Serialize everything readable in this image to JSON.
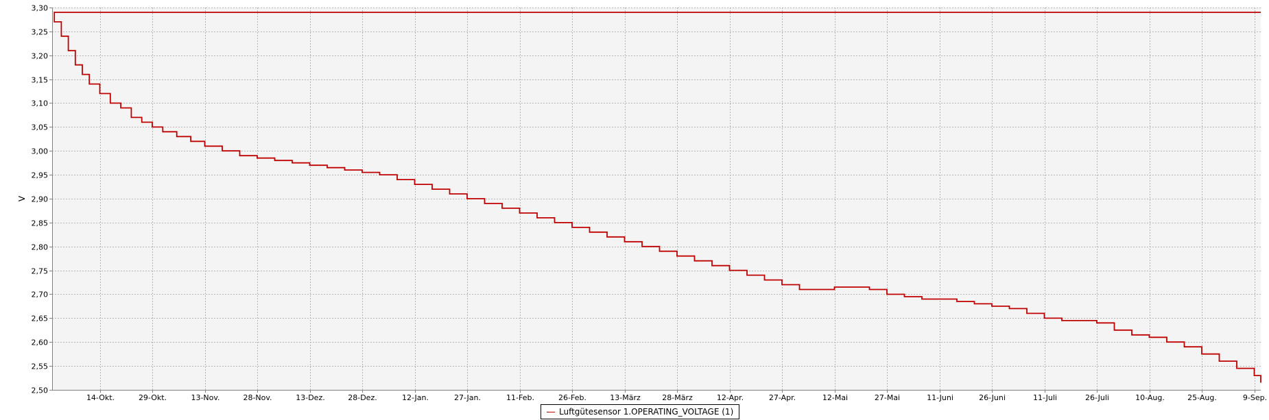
{
  "chart_data": {
    "type": "line",
    "ylabel": "V",
    "xlabel": "",
    "ylim": [
      2.5,
      3.3
    ],
    "y_ticks": [
      "2,50",
      "2,55",
      "2,60",
      "2,65",
      "2,70",
      "2,75",
      "2,80",
      "2,85",
      "2,90",
      "2,95",
      "3,00",
      "3,05",
      "3,10",
      "3,15",
      "3,20",
      "3,25",
      "3,30"
    ],
    "x_ticks": [
      "14-Okt.",
      "29-Okt.",
      "13-Nov.",
      "28-Nov.",
      "13-Dez.",
      "28-Dez.",
      "12-Jan.",
      "27-Jan.",
      "11-Feb.",
      "26-Feb.",
      "13-März",
      "28-März",
      "12-Apr.",
      "27-Apr.",
      "12-Mai",
      "27-Mai",
      "11-Juni",
      "26-Juni",
      "11-Juli",
      "26-Juli",
      "10-Aug.",
      "25-Aug.",
      "9-Sep."
    ],
    "grid": true,
    "legend_position": "bottom-center",
    "colors": {
      "series": "#c00000",
      "plot_background": "#f4f4f4",
      "grid": "#b4b4b4"
    },
    "series": [
      {
        "name": "Luftgütesensor 1.OPERATING_VOLTAGE (1)",
        "x": [
          "30-Sep.",
          "1-Okt.",
          "3-Okt.",
          "5-Okt.",
          "7-Okt.",
          "9-Okt.",
          "11-Okt.",
          "14-Okt.",
          "17-Okt.",
          "20-Okt.",
          "23-Okt.",
          "26-Okt.",
          "29-Okt.",
          "1-Nov.",
          "5-Nov.",
          "9-Nov.",
          "13-Nov.",
          "18-Nov.",
          "23-Nov.",
          "28-Nov.",
          "3-Dez.",
          "8-Dez.",
          "13-Dez.",
          "18-Dez.",
          "23-Dez.",
          "28-Dez.",
          "2-Jan.",
          "7-Jan.",
          "12-Jan.",
          "17-Jan.",
          "22-Jan.",
          "27-Jan.",
          "1-Feb.",
          "6-Feb.",
          "11-Feb.",
          "16-Feb.",
          "21-Feb.",
          "26-Feb.",
          "3-März",
          "8-März",
          "13-März",
          "18-März",
          "23-März",
          "28-März",
          "2-Apr.",
          "7-Apr.",
          "12-Apr.",
          "17-Apr.",
          "22-Apr.",
          "27-Apr.",
          "2-Mai",
          "7-Mai",
          "12-Mai",
          "17-Mai",
          "22-Mai",
          "27-Mai",
          "1-Juni",
          "6-Juni",
          "11-Juni",
          "16-Juni",
          "21-Juni",
          "26-Juni",
          "1-Juli",
          "6-Juli",
          "11-Juli",
          "16-Juli",
          "21-Juli",
          "26-Juli",
          "31-Juli",
          "5-Aug.",
          "10-Aug.",
          "15-Aug.",
          "20-Aug.",
          "25-Aug.",
          "30-Aug.",
          "4-Sep.",
          "9-Sep.",
          "11-Sep."
        ],
        "values": [
          3.29,
          3.27,
          3.24,
          3.21,
          3.18,
          3.16,
          3.14,
          3.12,
          3.1,
          3.09,
          3.07,
          3.06,
          3.05,
          3.04,
          3.03,
          3.02,
          3.01,
          3.0,
          2.99,
          2.985,
          2.98,
          2.975,
          2.97,
          2.965,
          2.96,
          2.955,
          2.95,
          2.94,
          2.93,
          2.92,
          2.91,
          2.9,
          2.89,
          2.88,
          2.87,
          2.86,
          2.85,
          2.84,
          2.83,
          2.82,
          2.81,
          2.8,
          2.79,
          2.78,
          2.77,
          2.76,
          2.75,
          2.74,
          2.73,
          2.72,
          2.71,
          2.71,
          2.715,
          2.715,
          2.71,
          2.7,
          2.695,
          2.69,
          2.69,
          2.685,
          2.68,
          2.675,
          2.67,
          2.66,
          2.65,
          2.645,
          2.645,
          2.64,
          2.625,
          2.615,
          2.61,
          2.6,
          2.59,
          2.575,
          2.56,
          2.545,
          2.53,
          2.515
        ]
      }
    ],
    "annotations": []
  }
}
